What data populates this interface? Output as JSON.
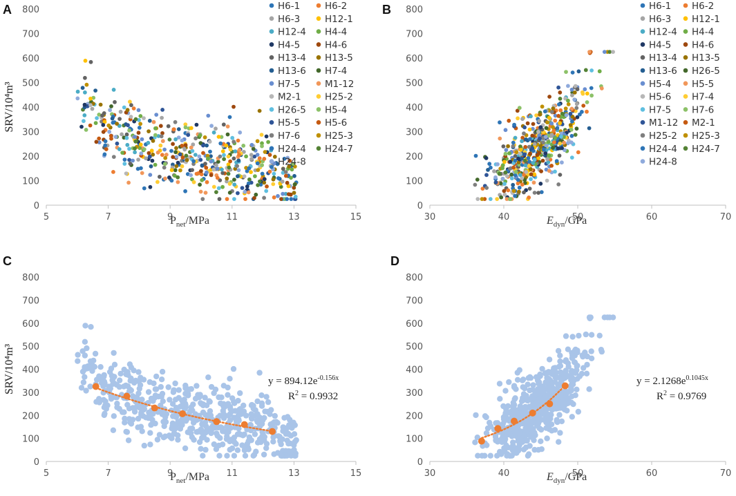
{
  "figure": {
    "panels": [
      "A",
      "B",
      "C",
      "D"
    ]
  },
  "colors": {
    "scatter_palette": [
      "#2e75b6",
      "#ed7d31",
      "#a5a5a5",
      "#ffc000",
      "#4bacc6",
      "#70ad47",
      "#1f3864",
      "#9e480e",
      "#636363",
      "#997300",
      "#255e91",
      "#43682b",
      "#698ed0",
      "#f1975a",
      "#b7b7b7",
      "#ffcd33",
      "#5fbfe0",
      "#8cc168",
      "#2f5597",
      "#c55a11",
      "#7f7f7f",
      "#bf9000",
      "#2e75b6",
      "#548235",
      "#8faadc"
    ],
    "cloud": "#a9c4e8",
    "fit": "#ed7d31",
    "axis": "#bfbfbf"
  },
  "chart_data": [
    {
      "panel": "A",
      "type": "scatter",
      "xlabel_main": "P",
      "xlabel_sub": "net",
      "xlabel_unit": "/MPa",
      "ylabel": "SRV/10⁴m³",
      "xlim": [
        5,
        15
      ],
      "ylim": [
        0,
        800
      ],
      "xticks": [
        "5",
        "7",
        "9",
        "11",
        "13",
        "15"
      ],
      "yticks": [
        "0",
        "100",
        "200",
        "300",
        "400",
        "500",
        "600",
        "700",
        "800"
      ],
      "legend": [
        "H6-1",
        "H6-2",
        "H6-3",
        "H12-1",
        "H12-4",
        "H4-4",
        "H4-5",
        "H4-6",
        "H13-4",
        "H13-5",
        "H13-6",
        "H7-4",
        "H7-5",
        "M1-12",
        "M2-1",
        "H25-2",
        "H26-5",
        "H5-4",
        "H5-5",
        "H5-6",
        "H7-6",
        "H25-3",
        "H24-4",
        "H24-7",
        "H24-8"
      ],
      "n_points": 560
    },
    {
      "panel": "B",
      "type": "scatter",
      "xlabel_main": "E",
      "xlabel_sub": "dyn",
      "xlabel_unit": "/GPa",
      "ylabel": "SRV/10⁴m³",
      "xlim": [
        30,
        70
      ],
      "ylim": [
        0,
        800
      ],
      "xticks": [
        "30",
        "40",
        "50",
        "60",
        "70"
      ],
      "yticks": [
        "0",
        "100",
        "200",
        "300",
        "400",
        "500",
        "600",
        "700",
        "800"
      ],
      "legend": [
        "H6-1",
        "H6-2",
        "H6-3",
        "H12-1",
        "H12-4",
        "H4-4",
        "H4-5",
        "H4-6",
        "H13-4",
        "H13-5",
        "H13-6",
        "H26-5",
        "H5-4",
        "H5-5",
        "H5-6",
        "H7-4",
        "H7-5",
        "H7-6",
        "M1-12",
        "M2-1",
        "H25-2",
        "H25-3",
        "H24-4",
        "H24-7",
        "H24-8"
      ],
      "n_points": 560
    },
    {
      "panel": "C",
      "type": "scatter",
      "xlabel_main": "P",
      "xlabel_sub": "net",
      "xlabel_unit": "/MPa",
      "ylabel": "SRV/10⁴m³",
      "xlim": [
        5,
        15
      ],
      "ylim": [
        0,
        800
      ],
      "xticks": [
        "5",
        "7",
        "9",
        "11",
        "13",
        "15"
      ],
      "yticks": [
        "0",
        "100",
        "200",
        "300",
        "400",
        "500",
        "600",
        "700",
        "800"
      ],
      "binned_points": {
        "x": [
          6.6,
          7.6,
          8.5,
          9.4,
          10.5,
          11.4,
          12.3
        ],
        "y": [
          325,
          283,
          232,
          207,
          173,
          160,
          130
        ]
      },
      "fit": {
        "a": 894.12,
        "b": -0.156
      },
      "equation": "y = 894.12e",
      "exponent": "-0.156x",
      "r2_label": "R",
      "r2_value": " = 0.9932"
    },
    {
      "panel": "D",
      "type": "scatter",
      "xlabel_main": "E",
      "xlabel_sub": "dyn",
      "xlabel_unit": "/GPa",
      "ylabel": "SRV/10⁴m³",
      "xlim": [
        30,
        70
      ],
      "ylim": [
        0,
        800
      ],
      "xticks": [
        "30",
        "40",
        "50",
        "60",
        "70"
      ],
      "yticks": [
        "0",
        "100",
        "200",
        "300",
        "400",
        "500",
        "600",
        "700",
        "800"
      ],
      "binned_points": {
        "x": [
          37.0,
          39.2,
          41.4,
          43.9,
          46.2,
          48.3
        ],
        "y": [
          88,
          143,
          175,
          210,
          250,
          328
        ]
      },
      "fit": {
        "a": 2.1268,
        "b": 0.1045
      },
      "equation": "y = 2.1268e",
      "exponent": "0.1045x",
      "r2_label": "R",
      "r2_value": " = 0.9769"
    }
  ]
}
